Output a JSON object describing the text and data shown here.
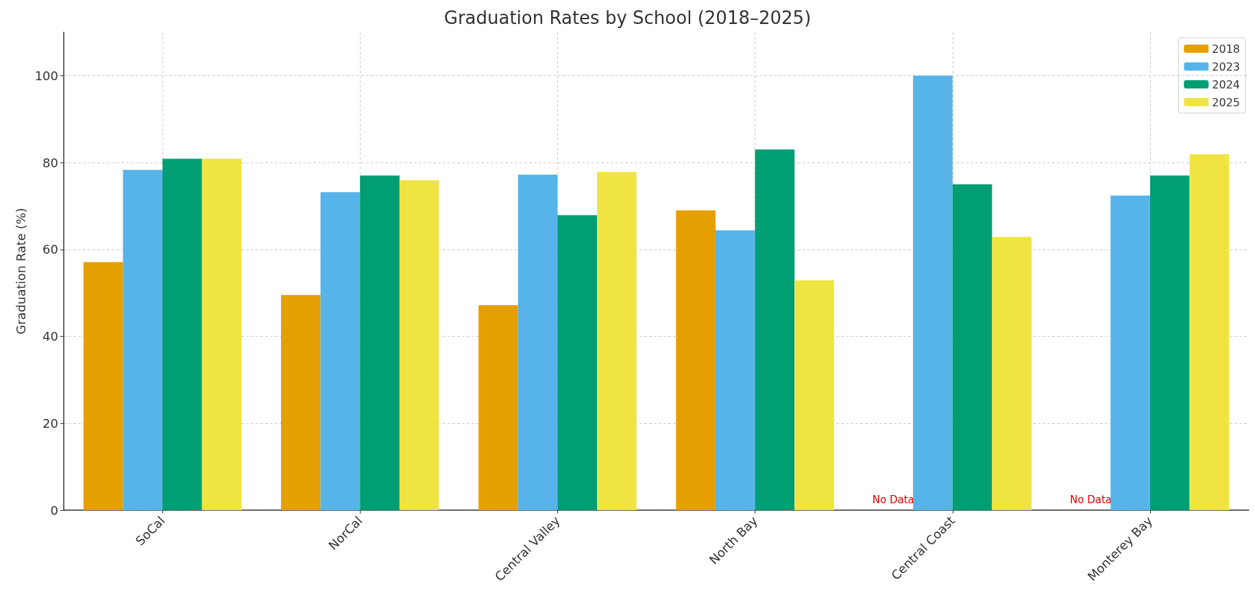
{
  "chart_data": {
    "type": "bar",
    "title": "Graduation Rates by School (2018–2025)",
    "ylabel": "Graduation Rate (%)",
    "categories": [
      "SoCal",
      "NorCal",
      "Central Valley",
      "North Bay",
      "Central Coast",
      "Monterey Bay"
    ],
    "series": [
      {
        "name": "2018",
        "color": "#e69f00",
        "values": [
          57.1,
          49.5,
          47.2,
          69.0,
          null,
          null
        ]
      },
      {
        "name": "2023",
        "color": "#56b4e9",
        "values": [
          78.3,
          73.2,
          77.2,
          64.4,
          100,
          72.4
        ]
      },
      {
        "name": "2024",
        "color": "#009e73",
        "values": [
          80.9,
          77.0,
          67.9,
          83.0,
          75.0,
          77.0
        ]
      },
      {
        "name": "2025",
        "color": "#f0e442",
        "values": [
          80.9,
          75.9,
          77.8,
          52.9,
          62.9,
          81.9
        ]
      }
    ],
    "ylim": [
      0,
      110
    ],
    "yticks": [
      0,
      20,
      40,
      60,
      80,
      100
    ],
    "grid": true,
    "legend": "top right",
    "annotations": [
      "No Data",
      "No Data"
    ]
  }
}
